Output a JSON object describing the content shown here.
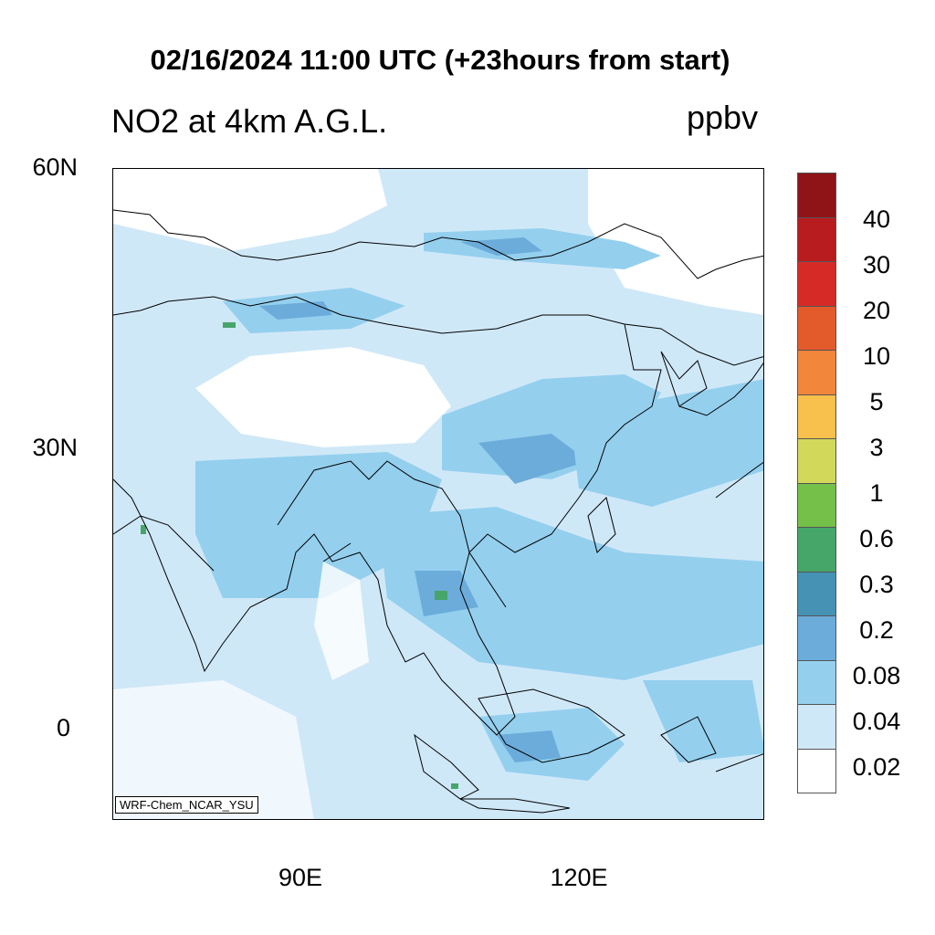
{
  "title": "02/16/2024 11:00 UTC (+23hours from start)",
  "subtitle": "NO2 at 4km A.G.L.",
  "units": "ppbv",
  "credit": "WRF-Chem_NCAR_YSU",
  "axes": {
    "y_labels": [
      "60N",
      "30N",
      "0"
    ],
    "x_labels": [
      "90E",
      "120E"
    ]
  },
  "colorbar": {
    "labels": [
      "40",
      "30",
      "20",
      "10",
      "5",
      "3",
      "1",
      "0.6",
      "0.3",
      "0.2",
      "0.08",
      "0.04",
      "0.02"
    ],
    "colors": [
      "#8e1418",
      "#b81c1f",
      "#d62a27",
      "#e35a2b",
      "#f2863a",
      "#f8c04d",
      "#d2d95a",
      "#74c048",
      "#46a66a",
      "#4592b4",
      "#6cacdb",
      "#94cfee",
      "#cfe8f8",
      "#ffffff"
    ]
  },
  "colors": {
    "light": "#cfe8f8",
    "mid": "#94cfee",
    "dark": "#6cacdb",
    "green": "#46a66a"
  }
}
